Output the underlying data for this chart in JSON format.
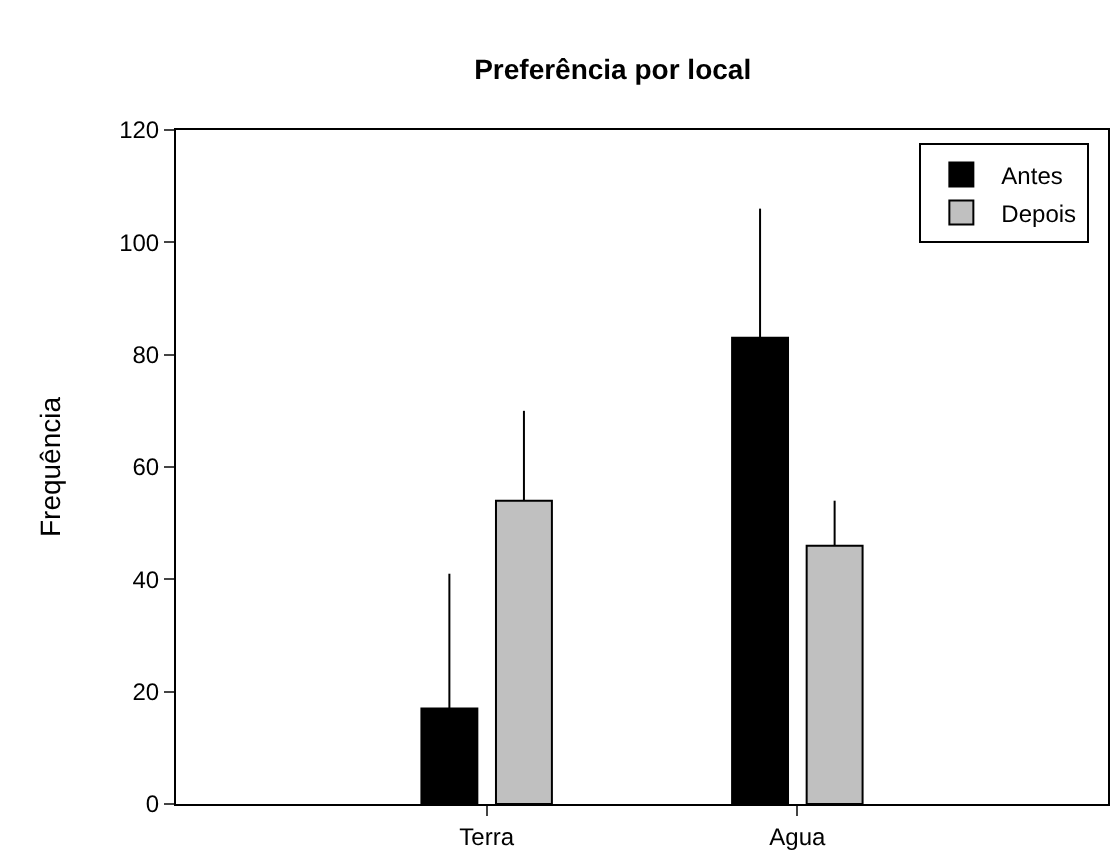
{
  "chart_data": {
    "type": "bar",
    "title": "Preferência por local",
    "ylabel": "Frequência",
    "categories": [
      "Terra",
      "Agua"
    ],
    "series": [
      {
        "name": "Antes",
        "color": "#000000",
        "values": [
          17,
          83
        ],
        "errors": [
          [
            17,
            41
          ],
          [
            83,
            106
          ]
        ]
      },
      {
        "name": "Depois",
        "color": "#c0c0c0",
        "values": [
          54,
          46
        ],
        "errors": [
          [
            54,
            70
          ],
          [
            46,
            54
          ]
        ]
      }
    ],
    "ylim": [
      0,
      120
    ],
    "yticks": [
      0,
      20,
      40,
      60,
      80,
      100,
      120
    ],
    "legend": "top right"
  }
}
